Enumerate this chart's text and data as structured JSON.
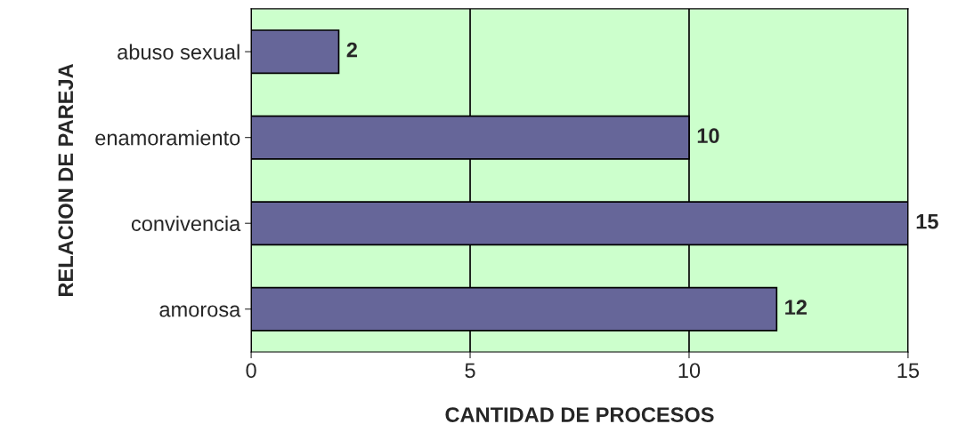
{
  "chart_data": {
    "type": "bar",
    "orientation": "horizontal",
    "xlabel": "CANTIDAD DE PROCESOS",
    "ylabel": "RELACION DE PAREJA",
    "categories": [
      "abuso sexual",
      "enamoramiento",
      "convivencia",
      "amorosa"
    ],
    "values": [
      2,
      10,
      15,
      12
    ],
    "color": "#666699",
    "xlim": [
      0,
      15
    ],
    "xticks": [
      0,
      5,
      10,
      15
    ],
    "grid": "x",
    "data_labels": true,
    "legend": false
  }
}
